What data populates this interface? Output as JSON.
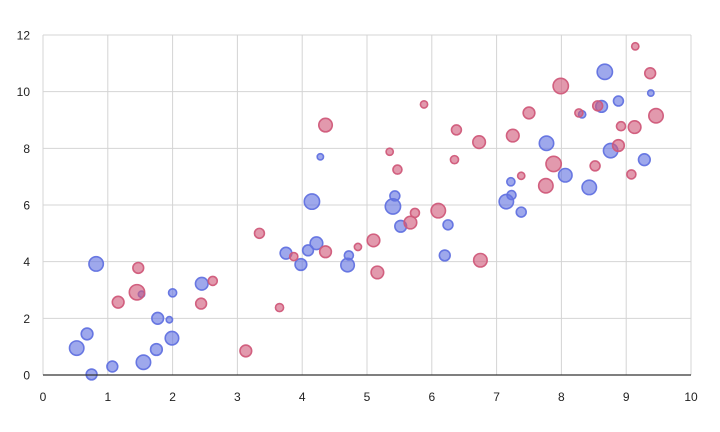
{
  "chart_data": {
    "type": "scatter",
    "title": "",
    "xlabel": "",
    "ylabel": "",
    "xlim": [
      0,
      10
    ],
    "ylim": [
      0,
      12
    ],
    "x_ticks": [
      "0",
      "1",
      "2",
      "3",
      "4",
      "5",
      "6",
      "7",
      "8",
      "9",
      "10"
    ],
    "y_ticks": [
      "0",
      "2",
      "4",
      "6",
      "8",
      "10",
      "12"
    ],
    "grid": true,
    "legend": "none",
    "series": [
      {
        "color": "#6272e0",
        "points": [
          {
            "x": 0.52,
            "y": 0.95,
            "r": 1.6
          },
          {
            "x": 0.68,
            "y": 1.45,
            "r": 1.3
          },
          {
            "x": 0.75,
            "y": 0.02,
            "r": 1.2
          },
          {
            "x": 0.82,
            "y": 3.92,
            "r": 1.6
          },
          {
            "x": 1.07,
            "y": 0.3,
            "r": 1.2
          },
          {
            "x": 1.52,
            "y": 2.85,
            "r": 0.7
          },
          {
            "x": 1.55,
            "y": 0.45,
            "r": 1.6
          },
          {
            "x": 1.75,
            "y": 0.9,
            "r": 1.3
          },
          {
            "x": 1.77,
            "y": 2.0,
            "r": 1.3
          },
          {
            "x": 1.95,
            "y": 1.95,
            "r": 0.7
          },
          {
            "x": 1.99,
            "y": 1.3,
            "r": 1.5
          },
          {
            "x": 2.0,
            "y": 2.9,
            "r": 0.9
          },
          {
            "x": 2.45,
            "y": 3.22,
            "r": 1.4
          },
          {
            "x": 3.75,
            "y": 4.3,
            "r": 1.3
          },
          {
            "x": 3.98,
            "y": 3.9,
            "r": 1.3
          },
          {
            "x": 4.09,
            "y": 4.4,
            "r": 1.2
          },
          {
            "x": 4.15,
            "y": 6.12,
            "r": 1.7
          },
          {
            "x": 4.22,
            "y": 4.65,
            "r": 1.4
          },
          {
            "x": 4.28,
            "y": 7.7,
            "r": 0.7
          },
          {
            "x": 4.7,
            "y": 3.88,
            "r": 1.5
          },
          {
            "x": 4.72,
            "y": 4.22,
            "r": 1.0
          },
          {
            "x": 5.4,
            "y": 5.95,
            "r": 1.7
          },
          {
            "x": 5.43,
            "y": 6.32,
            "r": 1.1
          },
          {
            "x": 5.52,
            "y": 5.25,
            "r": 1.3
          },
          {
            "x": 6.2,
            "y": 4.22,
            "r": 1.2
          },
          {
            "x": 6.25,
            "y": 5.3,
            "r": 1.1
          },
          {
            "x": 7.15,
            "y": 6.12,
            "r": 1.6
          },
          {
            "x": 7.22,
            "y": 6.82,
            "r": 0.9
          },
          {
            "x": 7.23,
            "y": 6.35,
            "r": 1.0
          },
          {
            "x": 7.38,
            "y": 5.75,
            "r": 1.1
          },
          {
            "x": 7.77,
            "y": 8.18,
            "r": 1.6
          },
          {
            "x": 8.06,
            "y": 7.05,
            "r": 1.5
          },
          {
            "x": 8.32,
            "y": 9.2,
            "r": 0.8
          },
          {
            "x": 8.43,
            "y": 6.62,
            "r": 1.6
          },
          {
            "x": 8.62,
            "y": 9.48,
            "r": 1.3
          },
          {
            "x": 8.67,
            "y": 10.7,
            "r": 1.7
          },
          {
            "x": 8.76,
            "y": 7.92,
            "r": 1.6
          },
          {
            "x": 8.88,
            "y": 9.67,
            "r": 1.1
          },
          {
            "x": 9.28,
            "y": 7.6,
            "r": 1.3
          },
          {
            "x": 9.38,
            "y": 9.95,
            "r": 0.7
          }
        ]
      },
      {
        "color": "#d05a7a",
        "points": [
          {
            "x": 1.16,
            "y": 2.57,
            "r": 1.3
          },
          {
            "x": 1.45,
            "y": 2.92,
            "r": 1.7
          },
          {
            "x": 1.47,
            "y": 3.78,
            "r": 1.2
          },
          {
            "x": 2.44,
            "y": 2.52,
            "r": 1.2
          },
          {
            "x": 2.62,
            "y": 3.32,
            "r": 1.0
          },
          {
            "x": 3.13,
            "y": 0.85,
            "r": 1.3
          },
          {
            "x": 3.34,
            "y": 5.0,
            "r": 1.1
          },
          {
            "x": 3.65,
            "y": 2.38,
            "r": 0.9
          },
          {
            "x": 3.87,
            "y": 4.18,
            "r": 0.9
          },
          {
            "x": 4.36,
            "y": 4.35,
            "r": 1.3
          },
          {
            "x": 4.36,
            "y": 8.82,
            "r": 1.5
          },
          {
            "x": 4.86,
            "y": 4.52,
            "r": 0.8
          },
          {
            "x": 5.1,
            "y": 4.75,
            "r": 1.4
          },
          {
            "x": 5.16,
            "y": 3.62,
            "r": 1.4
          },
          {
            "x": 5.35,
            "y": 7.88,
            "r": 0.8
          },
          {
            "x": 5.47,
            "y": 7.25,
            "r": 1.0
          },
          {
            "x": 5.67,
            "y": 5.38,
            "r": 1.4
          },
          {
            "x": 5.74,
            "y": 5.72,
            "r": 1.0
          },
          {
            "x": 5.88,
            "y": 9.55,
            "r": 0.8
          },
          {
            "x": 6.1,
            "y": 5.8,
            "r": 1.6
          },
          {
            "x": 6.35,
            "y": 7.6,
            "r": 0.9
          },
          {
            "x": 6.38,
            "y": 8.65,
            "r": 1.1
          },
          {
            "x": 6.73,
            "y": 8.22,
            "r": 1.4
          },
          {
            "x": 6.75,
            "y": 4.05,
            "r": 1.5
          },
          {
            "x": 7.25,
            "y": 8.45,
            "r": 1.4
          },
          {
            "x": 7.38,
            "y": 7.03,
            "r": 0.8
          },
          {
            "x": 7.5,
            "y": 9.25,
            "r": 1.3
          },
          {
            "x": 7.76,
            "y": 6.68,
            "r": 1.6
          },
          {
            "x": 7.88,
            "y": 7.45,
            "r": 1.7
          },
          {
            "x": 7.99,
            "y": 10.2,
            "r": 1.7
          },
          {
            "x": 8.27,
            "y": 9.25,
            "r": 0.9
          },
          {
            "x": 8.52,
            "y": 7.38,
            "r": 1.1
          },
          {
            "x": 8.56,
            "y": 9.5,
            "r": 1.1
          },
          {
            "x": 8.88,
            "y": 8.1,
            "r": 1.3
          },
          {
            "x": 8.92,
            "y": 8.78,
            "r": 1.0
          },
          {
            "x": 9.08,
            "y": 7.08,
            "r": 1.0
          },
          {
            "x": 9.13,
            "y": 8.75,
            "r": 1.4
          },
          {
            "x": 9.14,
            "y": 11.6,
            "r": 0.8
          },
          {
            "x": 9.37,
            "y": 10.65,
            "r": 1.2
          },
          {
            "x": 9.46,
            "y": 9.15,
            "r": 1.6
          }
        ]
      }
    ]
  }
}
